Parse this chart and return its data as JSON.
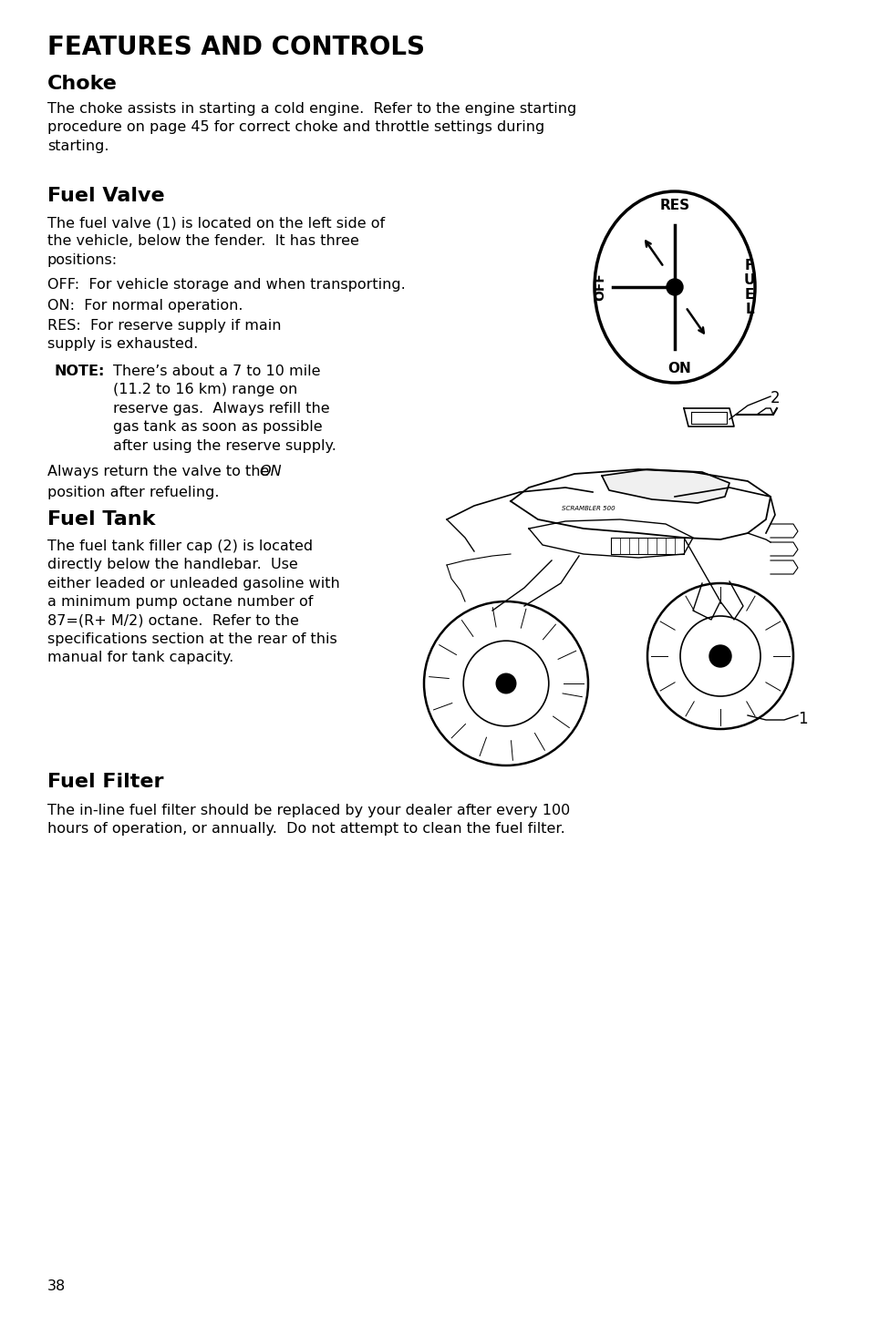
{
  "bg_color": "#ffffff",
  "page_number": "38",
  "title": "FEATURES AND CONTROLS",
  "title_fontsize": 20,
  "section1_heading": "Choke",
  "section1_heading_fontsize": 16,
  "section1_body": "The choke assists in starting a cold engine.  Refer to the engine starting\nprocedure on page 45 for correct choke and throttle settings during\nstarting.",
  "section2_heading": "Fuel Valve",
  "section2_heading_fontsize": 16,
  "section2_body1": "The fuel valve (1) is located on the left side of\nthe vehicle, below the fender.  It has three\npositions:",
  "section2_item1": "OFF:  For vehicle storage and when transporting.",
  "section2_item2": "ON:  For normal operation.",
  "section2_item3": "RES:  For reserve supply if main\nsupply is exhausted.",
  "section2_note_label": "NOTE:",
  "section2_note_text": "There’s about a 7 to 10 mile\n(11.2 to 16 km) range on\nreserve gas.  Always refill the\ngas tank as soon as possible\nafter using the reserve supply.",
  "section3_heading": "Fuel Tank",
  "section3_heading_fontsize": 16,
  "section3_body": "The fuel tank filler cap (2) is located\ndirectly below the handlebar.  Use\neither leaded or unleaded gasoline with\na minimum pump octane number of\n87=(R+ M/2) octane.  Refer to the\nspecifications section at the rear of this\nmanual for tank capacity.",
  "section4_heading": "Fuel Filter",
  "section4_heading_fontsize": 16,
  "section4_body": "The in-line fuel filter should be replaced by your dealer after every 100\nhours of operation, or annually.  Do not attempt to clean the fuel filter.",
  "body_fontsize": 11.5,
  "body_color": "#000000"
}
